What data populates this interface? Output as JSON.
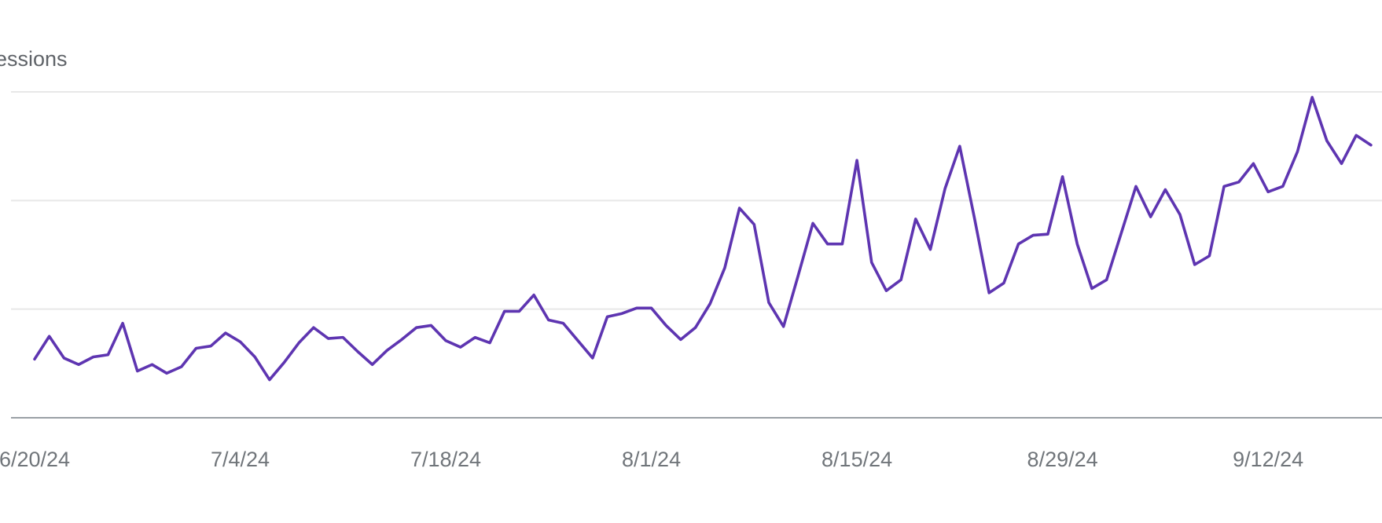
{
  "chart_data": {
    "type": "line",
    "ylabel": "essions",
    "ylim": [
      0,
      3
    ],
    "y_gridlines": [
      1,
      2,
      3
    ],
    "y_tick_labels_visible": false,
    "grid": true,
    "x_tick_labels": [
      "6/20/24",
      "7/4/24",
      "7/18/24",
      "8/1/24",
      "8/15/24",
      "8/29/24",
      "9/12/24"
    ],
    "x_tick_label_visible_text": [
      "6/20/24",
      "7/4/24",
      "7/18/24",
      "8/1/24",
      "8/15/24",
      "8/29/24",
      "9/12/24"
    ],
    "x_start": "6/20/24",
    "x_end": "9/23/24",
    "series": [
      {
        "color": "#5e35b1",
        "values": [
          0.54,
          0.75,
          0.55,
          0.49,
          0.56,
          0.58,
          0.87,
          0.43,
          0.49,
          0.41,
          0.47,
          0.64,
          0.66,
          0.78,
          0.7,
          0.56,
          0.35,
          0.51,
          0.69,
          0.83,
          0.73,
          0.74,
          0.61,
          0.49,
          0.62,
          0.72,
          0.83,
          0.85,
          0.71,
          0.65,
          0.74,
          0.69,
          0.98,
          0.98,
          1.13,
          0.9,
          0.87,
          0.71,
          0.55,
          0.93,
          0.96,
          1.01,
          1.01,
          0.85,
          0.72,
          0.83,
          1.05,
          1.38,
          1.93,
          1.78,
          1.06,
          0.84,
          1.31,
          1.79,
          1.6,
          1.6,
          2.37,
          1.43,
          1.17,
          1.27,
          1.83,
          1.55,
          2.11,
          2.5,
          1.84,
          1.15,
          1.24,
          1.6,
          1.68,
          1.69,
          2.22,
          1.6,
          1.19,
          1.27,
          1.7,
          2.13,
          1.85,
          2.1,
          1.87,
          1.41,
          1.49,
          2.13,
          2.17,
          2.34,
          2.08,
          2.13,
          2.45,
          2.95,
          2.55,
          2.34,
          2.6,
          2.51
        ]
      }
    ],
    "legend": "none"
  }
}
